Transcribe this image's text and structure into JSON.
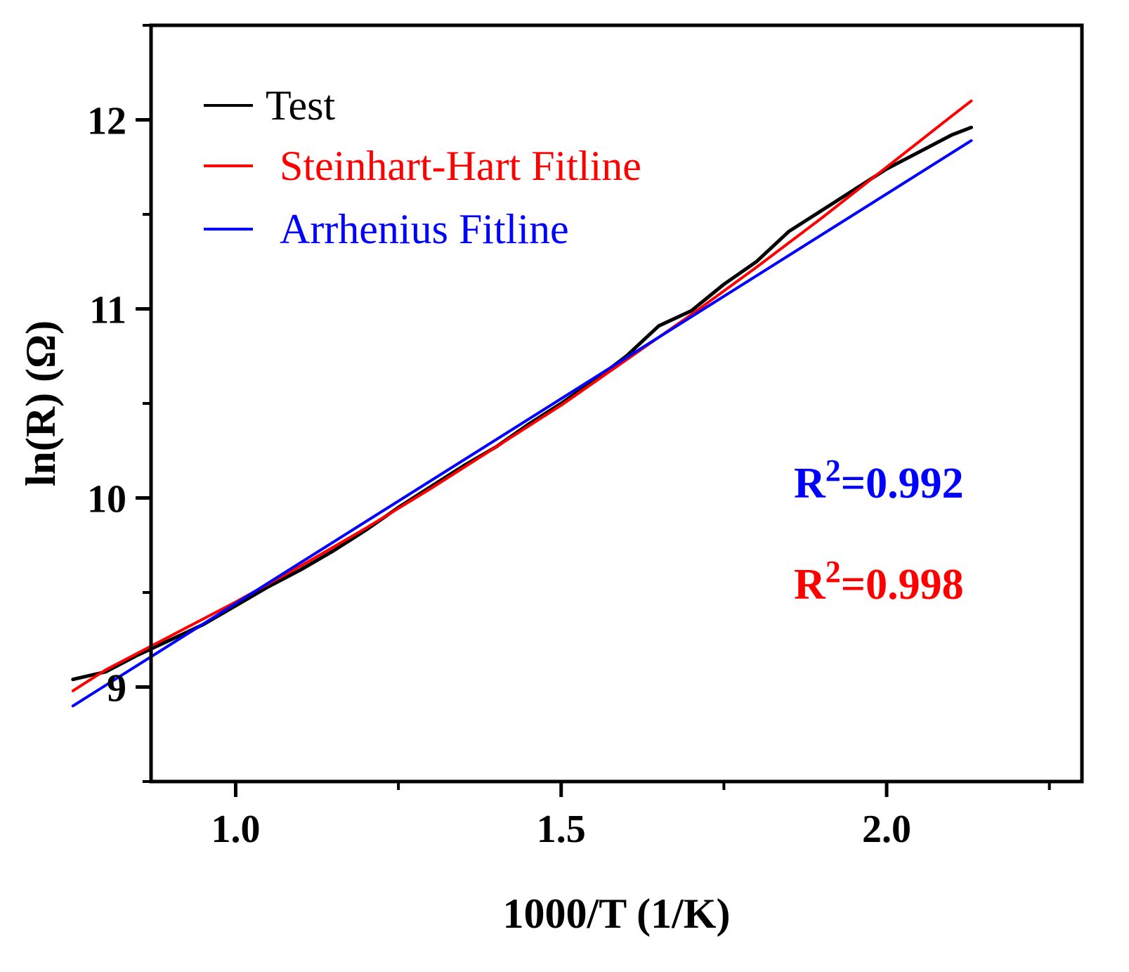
{
  "chart_data": {
    "type": "line",
    "xlabel": "1000/T (1/K)",
    "ylabel": "ln(R) (Ω)",
    "xlim": [
      0.87,
      2.3
    ],
    "ylim": [
      8.5,
      12.5
    ],
    "x_ticks": [
      1.0,
      1.5,
      2.0
    ],
    "x_tick_labels": [
      "1.0",
      "1.5",
      "2.0"
    ],
    "x_minor_ticks": [
      0.75,
      1.25,
      1.75,
      2.25
    ],
    "y_ticks": [
      9,
      10,
      11,
      12
    ],
    "y_tick_labels": [
      "9",
      "10",
      "11",
      "12"
    ],
    "y_minor_ticks": [
      8.5,
      9.5,
      10.5,
      11.5,
      12.5
    ],
    "grid": false,
    "legend_position": "top-left",
    "series": [
      {
        "name": "Test",
        "color": "#000000",
        "x": [
          0.75,
          0.8,
          0.85,
          0.9,
          0.95,
          1.0,
          1.05,
          1.1,
          1.15,
          1.2,
          1.25,
          1.3,
          1.35,
          1.4,
          1.45,
          1.5,
          1.55,
          1.6,
          1.65,
          1.7,
          1.75,
          1.8,
          1.85,
          1.9,
          1.95,
          2.0,
          2.05,
          2.1,
          2.13
        ],
        "y": [
          9.04,
          9.08,
          9.17,
          9.25,
          9.33,
          9.43,
          9.53,
          9.62,
          9.72,
          9.83,
          9.95,
          10.06,
          10.17,
          10.27,
          10.39,
          10.5,
          10.62,
          10.75,
          10.91,
          10.99,
          11.13,
          11.25,
          11.41,
          11.52,
          11.63,
          11.74,
          11.83,
          11.92,
          11.96
        ]
      },
      {
        "name": "Steinhart-Hart Fitline",
        "color": "#ff0000",
        "x": [
          0.75,
          0.8,
          0.9,
          1.0,
          1.1,
          1.2,
          1.3,
          1.4,
          1.5,
          1.6,
          1.7,
          1.8,
          1.9,
          2.0,
          2.1,
          2.13
        ],
        "y": [
          8.98,
          9.09,
          9.27,
          9.45,
          9.64,
          9.84,
          10.05,
          10.27,
          10.49,
          10.73,
          10.97,
          11.22,
          11.48,
          11.75,
          12.02,
          12.1
        ]
      },
      {
        "name": "Arrhenius Fitline",
        "color": "#0000ff",
        "x": [
          0.75,
          2.13
        ],
        "y": [
          8.9,
          11.89
        ]
      }
    ],
    "annotations": [
      {
        "text": "R²=0.992",
        "base": "R",
        "sup": "2",
        "rest": "=0.992",
        "color": "#0000ff"
      },
      {
        "text": "R²=0.998",
        "base": "R",
        "sup": "2",
        "rest": "=0.998",
        "color": "#ff0000"
      }
    ]
  }
}
